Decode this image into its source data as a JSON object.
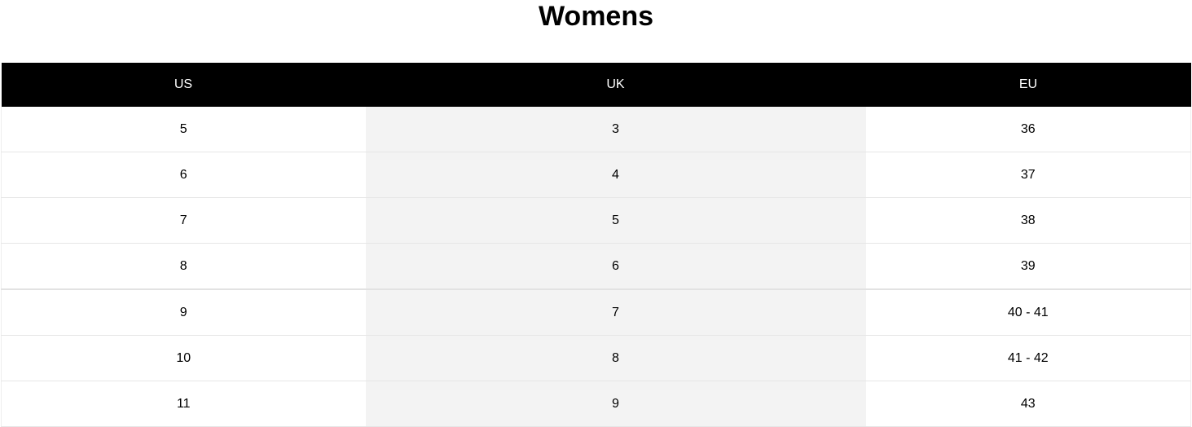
{
  "title": "Womens",
  "table": {
    "headers": [
      "US",
      "UK",
      "EU"
    ],
    "rows": [
      [
        "5",
        "3",
        "36"
      ],
      [
        "6",
        "4",
        "37"
      ],
      [
        "7",
        "5",
        "38"
      ],
      [
        "8",
        "6",
        "39"
      ],
      [
        "9",
        "7",
        "40 - 41"
      ],
      [
        "10",
        "8",
        "41 - 42"
      ],
      [
        "11",
        "9",
        "43"
      ]
    ]
  },
  "colors": {
    "header_bg": "#000000",
    "header_text": "#ffffff",
    "middle_column_bg": "#f3f3f3"
  }
}
